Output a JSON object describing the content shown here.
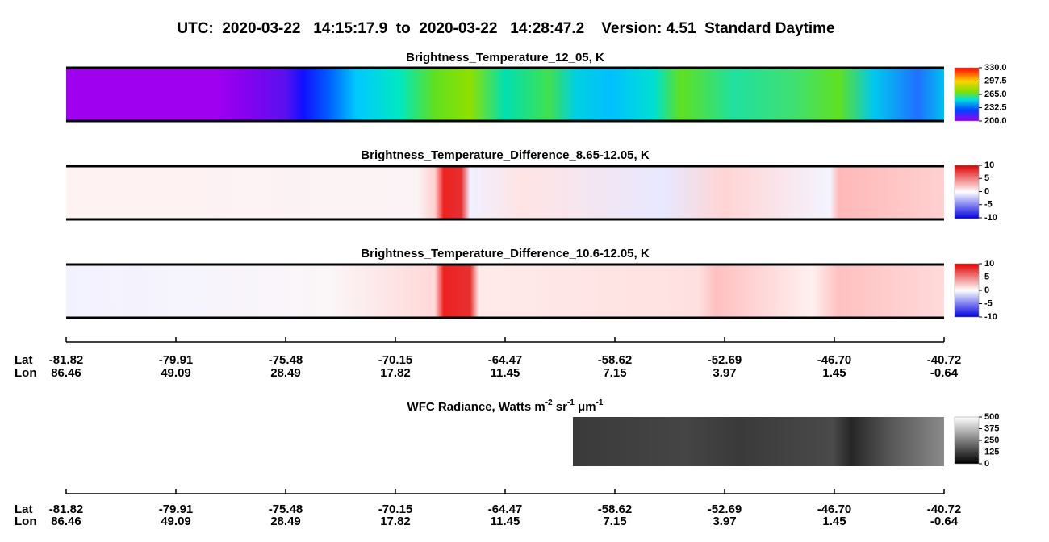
{
  "title": "UTC:  2020-03-22   14:15:17.9  to  2020-03-22   14:28:47.2    Version: 4.51  Standard Daytime",
  "panels": [
    {
      "title": "Brightness_Temperature_12_05, K",
      "colorbar": {
        "lim": [
          200,
          330
        ],
        "ticks": [
          {
            "value": 330,
            "label": "330.0"
          },
          {
            "value": 297.5,
            "label": "297.5"
          },
          {
            "value": 265,
            "label": "265.0"
          },
          {
            "value": 232.5,
            "label": "232.5"
          },
          {
            "value": 200,
            "label": "200.0"
          }
        ]
      }
    },
    {
      "title": "Brightness_Temperature_Difference_8.65-12.05, K",
      "colorbar": {
        "lim": [
          -10,
          10
        ],
        "ticks": [
          10,
          5,
          0,
          -5,
          -10
        ]
      }
    },
    {
      "title": "Brightness_Temperature_Difference_10.6-12.05, K",
      "colorbar": {
        "lim": [
          -10,
          10
        ],
        "ticks": [
          10,
          5,
          0,
          -5,
          -10
        ]
      }
    }
  ],
  "axis_labels": {
    "lat": "Lat",
    "lon": "Lon"
  },
  "lat": [
    "-81.82",
    "-79.91",
    "-75.48",
    "-70.15",
    "-64.47",
    "-58.62",
    "-52.69",
    "-46.70",
    "-40.72"
  ],
  "lon": [
    "86.46",
    "49.09",
    "28.49",
    "17.82",
    "11.45",
    "7.15",
    "3.97",
    "1.45",
    "-0.64"
  ],
  "wfc": {
    "title_parts": [
      "WFC Radiance, Watts m",
      "-2",
      " sr",
      "-1",
      " μm",
      "-1"
    ],
    "colorbar": {
      "lim": [
        0,
        500
      ],
      "ticks": [
        500,
        375,
        250,
        125,
        0
      ]
    }
  }
}
